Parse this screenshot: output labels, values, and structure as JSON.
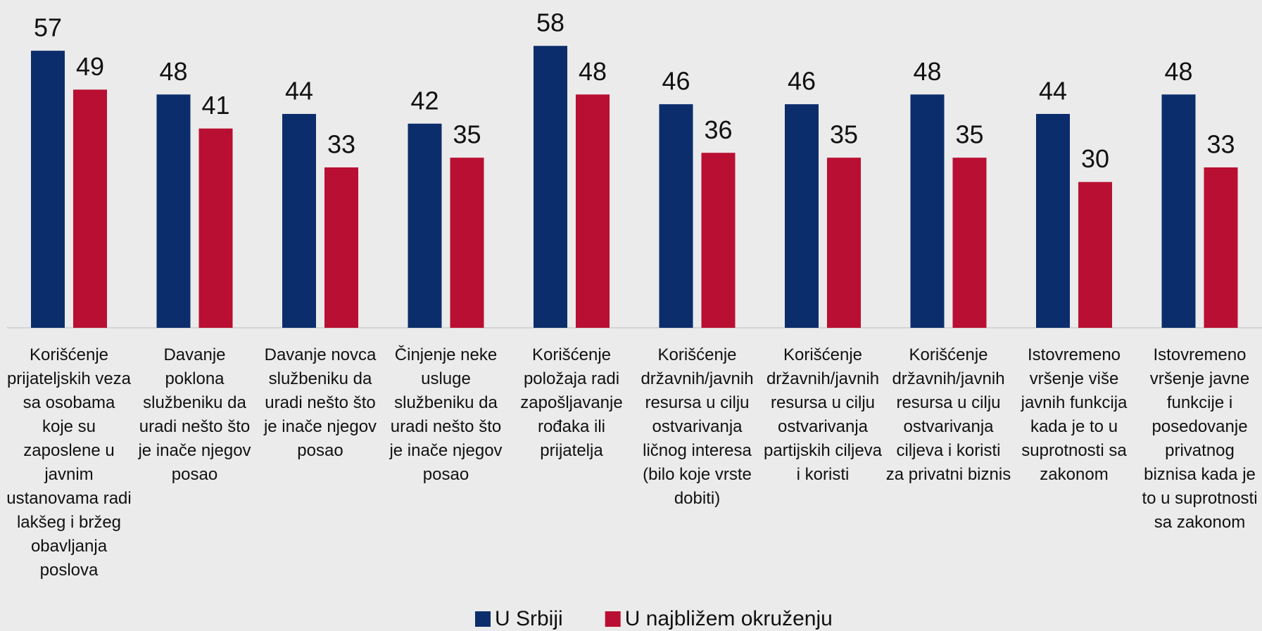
{
  "chart_data": {
    "type": "bar",
    "categories": [
      "Korišćenje prijateljskih veza sa osobama koje su zaposlene u javnim ustanovama radi lakšeg i bržeg obavljanja poslova",
      "Davanje poklona službeniku da uradi nešto što je inače njegov posao",
      "Davanje novca službeniku da uradi nešto što je inače njegov posao",
      "Činjenje neke usluge službeniku da uradi nešto što je inače njegov posao",
      "Korišćenje položaja radi zapošljavanje rođaka ili prijatelja",
      "Korišćenje državnih/javnih resursa u cilju ostvarivanja ličnog interesa (bilo koje vrste dobiti)",
      "Korišćenje državnih/javnih resursa u cilju ostvarivanja partijskih ciljeva i koristi",
      "Korišćenje državnih/javnih resursa u cilju ostvarivanja ciljeva i koristi za privatni biznis",
      "Istovremeno vršenje više javnih funkcija kada je to u suprotnosti sa zakonom",
      "Istovremeno vršenje javne funkcije i posedovanje privatnog biznisa kada je to u suprotnosti sa zakonom"
    ],
    "series": [
      {
        "name": "U Srbiji",
        "color": "#0b2d6b",
        "values": [
          57,
          48,
          44,
          42,
          58,
          46,
          46,
          48,
          44,
          48
        ]
      },
      {
        "name": "U najbližem okruženju",
        "color": "#b90f32",
        "values": [
          49,
          41,
          33,
          35,
          48,
          36,
          35,
          35,
          30,
          33
        ]
      }
    ],
    "legend": "bottom"
  }
}
